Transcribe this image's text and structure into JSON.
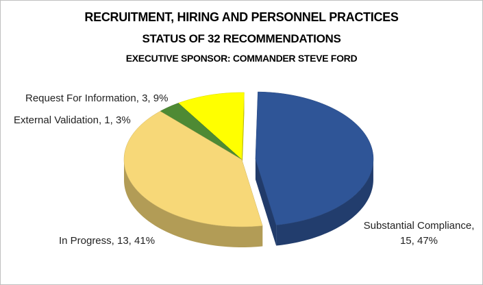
{
  "chart_data": {
    "type": "pie3d",
    "title": "RECRUITMENT, HIRING AND PERSONNEL PRACTICES",
    "subtitle": "STATUS OF 32 RECOMMENDATIONS",
    "sponsor": "EXECUTIVE SPONSOR: COMMANDER STEVE FORD",
    "values": [
      15,
      13,
      1,
      3
    ],
    "value_labels": [
      "Substantial Compliance, 15, 47%",
      "In Progress, 13, 41%",
      "External Validation, 1, 3%",
      "Request For Information, 3, 9%"
    ],
    "colors": [
      "#2f5597",
      "#f7d878",
      "#4e8a34",
      "#ffff00"
    ]
  }
}
